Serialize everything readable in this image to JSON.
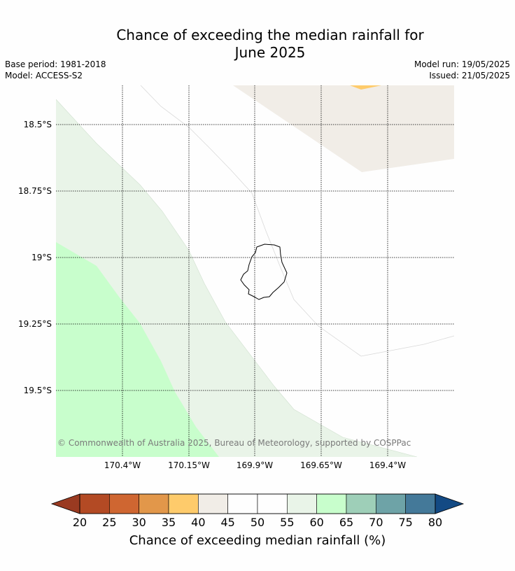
{
  "header": {
    "title_line1": "Chance of exceeding the median rainfall for",
    "title_line2": "June 2025",
    "base_period": "Base period: 1981-2018",
    "model": "Model: ACCESS-S2",
    "model_run": "Model run: 19/05/2025",
    "issued": "Issued: 21/05/2025"
  },
  "map": {
    "lat_ticks": [
      "18.5°S",
      "18.75°S",
      "19°S",
      "19.25°S",
      "19.5°S"
    ],
    "lon_ticks": [
      "170.4°W",
      "170.15°W",
      "169.9°W",
      "169.65°W",
      "169.4°W"
    ],
    "copyright": "© Commonwealth of Australia 2025, Bureau of Meteorology, supported by COSPPac",
    "category_colors": {
      "35-40": "#fecb6b",
      "40-45": "#f1ede7",
      "45-55": "#fefefe",
      "55-60": "#e9f4e8",
      "60-65": "#c8fecc"
    },
    "land_feature": "island-outline"
  },
  "colorbar": {
    "title": "Chance of exceeding median rainfall (%)",
    "labels": [
      "20",
      "25",
      "30",
      "35",
      "40",
      "45",
      "50",
      "55",
      "60",
      "65",
      "70",
      "75",
      "80"
    ],
    "low_extend_color": "#9a3a21",
    "high_extend_color": "#134a84",
    "colors": [
      "#b34a24",
      "#cf6631",
      "#e2974a",
      "#fecb6b",
      "#f1ede7",
      "#fefefe",
      "#fefefe",
      "#e9f4e8",
      "#c8fecc",
      "#9ecfb8",
      "#6ea3a7",
      "#447999"
    ]
  }
}
